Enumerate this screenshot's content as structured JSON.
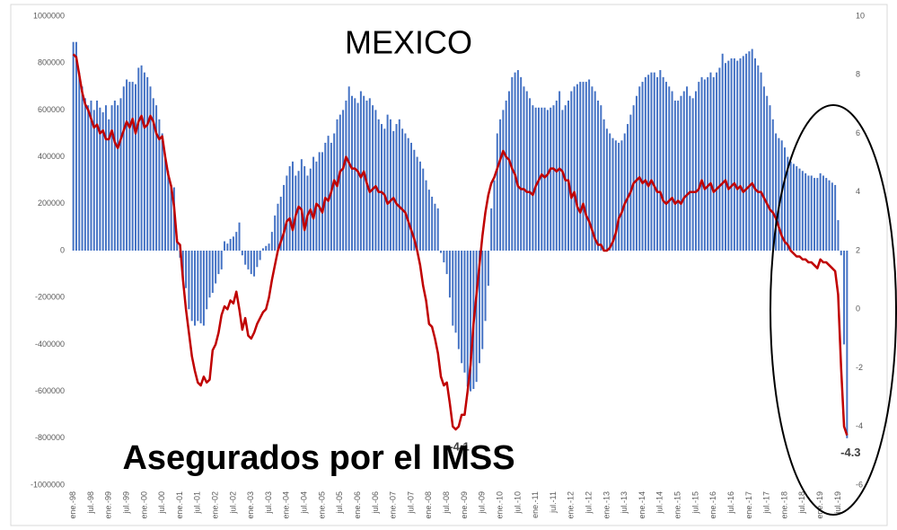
{
  "chart_data": {
    "type": "bar",
    "title": "MEXICO",
    "subtitle": "Asegurados por el IMSS",
    "categories": [
      "ene.-98",
      null,
      null,
      null,
      null,
      null,
      "jul.-98",
      null,
      null,
      null,
      null,
      null,
      "ene.-99",
      null,
      null,
      null,
      null,
      null,
      "jul.-99",
      null,
      null,
      null,
      null,
      null,
      "ene.-00",
      null,
      null,
      null,
      null,
      null,
      "jul.-00",
      null,
      null,
      null,
      null,
      null,
      "ene.-01",
      null,
      null,
      null,
      null,
      null,
      "jul.-01",
      null,
      null,
      null,
      null,
      null,
      "ene.-02",
      null,
      null,
      null,
      null,
      null,
      "jul.-02",
      null,
      null,
      null,
      null,
      null,
      "ene.-03",
      null,
      null,
      null,
      null,
      null,
      "jul.-03",
      null,
      null,
      null,
      null,
      null,
      "ene.-04",
      null,
      null,
      null,
      null,
      null,
      "jul.-04",
      null,
      null,
      null,
      null,
      null,
      "ene.-05",
      null,
      null,
      null,
      null,
      null,
      "jul.-05",
      null,
      null,
      null,
      null,
      null,
      "ene.-06",
      null,
      null,
      null,
      null,
      null,
      "jul.-06",
      null,
      null,
      null,
      null,
      null,
      "ene.-07",
      null,
      null,
      null,
      null,
      null,
      "jul.-07",
      null,
      null,
      null,
      null,
      null,
      "ene.-08",
      null,
      null,
      null,
      null,
      null,
      "jul.-08",
      null,
      null,
      null,
      null,
      null,
      "ene.-09",
      null,
      null,
      null,
      null,
      null,
      "jul.-09",
      null,
      null,
      null,
      null,
      null,
      "ene.-10",
      null,
      null,
      null,
      null,
      null,
      "jul.-10",
      null,
      null,
      null,
      null,
      null,
      "ene.-11",
      null,
      null,
      null,
      null,
      null,
      "jul.-11",
      null,
      null,
      null,
      null,
      null,
      "ene.-12",
      null,
      null,
      null,
      null,
      null,
      "jul.-12",
      null,
      null,
      null,
      null,
      null,
      "ene.-13",
      null,
      null,
      null,
      null,
      null,
      "jul.-13",
      null,
      null,
      null,
      null,
      null,
      "ene.-14",
      null,
      null,
      null,
      null,
      null,
      "jul.-14",
      null,
      null,
      null,
      null,
      null,
      "ene.-15",
      null,
      null,
      null,
      null,
      null,
      "jul.-15",
      null,
      null,
      null,
      null,
      null,
      "ene.-16",
      null,
      null,
      null,
      null,
      null,
      "jul.-16",
      null,
      null,
      null,
      null,
      null,
      "ene.-17",
      null,
      null,
      null,
      null,
      null,
      "jul.-17",
      null,
      null,
      null,
      null,
      null,
      "ene.-18",
      null,
      null,
      null,
      null,
      null,
      "jul.-18",
      null,
      null,
      null,
      null,
      null,
      "ene.-19",
      null,
      null,
      null,
      null,
      null,
      "jul.-19",
      null,
      null,
      null
    ],
    "series": [
      {
        "type": "bar",
        "color": "#4472c4",
        "values": [
          890000,
          890000,
          760000,
          700000,
          650000,
          620000,
          640000,
          600000,
          640000,
          610000,
          590000,
          620000,
          560000,
          620000,
          640000,
          620000,
          650000,
          700000,
          730000,
          720000,
          720000,
          710000,
          780000,
          790000,
          760000,
          740000,
          700000,
          650000,
          620000,
          560000,
          500000,
          400000,
          340000,
          280000,
          270000,
          50000,
          -30000,
          -120000,
          -160000,
          -250000,
          -300000,
          -320000,
          -300000,
          -310000,
          -320000,
          -250000,
          -200000,
          -180000,
          -140000,
          -100000,
          -80000,
          40000,
          30000,
          50000,
          60000,
          80000,
          120000,
          -20000,
          -60000,
          -80000,
          -100000,
          -110000,
          -70000,
          -40000,
          10000,
          20000,
          30000,
          80000,
          150000,
          200000,
          230000,
          280000,
          320000,
          360000,
          380000,
          320000,
          340000,
          390000,
          360000,
          320000,
          350000,
          400000,
          380000,
          420000,
          420000,
          460000,
          490000,
          460000,
          500000,
          560000,
          580000,
          600000,
          640000,
          700000,
          660000,
          650000,
          630000,
          680000,
          660000,
          640000,
          650000,
          620000,
          600000,
          560000,
          540000,
          520000,
          580000,
          560000,
          510000,
          540000,
          560000,
          520000,
          500000,
          480000,
          460000,
          430000,
          400000,
          380000,
          350000,
          300000,
          260000,
          230000,
          200000,
          180000,
          -10000,
          -50000,
          -100000,
          -200000,
          -320000,
          -350000,
          -420000,
          -480000,
          -520000,
          -580000,
          -600000,
          -590000,
          -560000,
          -480000,
          -420000,
          -300000,
          -150000,
          180000,
          300000,
          500000,
          560000,
          600000,
          640000,
          680000,
          740000,
          760000,
          770000,
          740000,
          700000,
          680000,
          650000,
          620000,
          610000,
          610000,
          610000,
          610000,
          600000,
          610000,
          620000,
          640000,
          680000,
          600000,
          620000,
          640000,
          680000,
          700000,
          710000,
          720000,
          720000,
          720000,
          730000,
          700000,
          680000,
          640000,
          620000,
          560000,
          520000,
          500000,
          480000,
          470000,
          460000,
          470000,
          500000,
          540000,
          580000,
          620000,
          660000,
          700000,
          720000,
          740000,
          750000,
          760000,
          760000,
          740000,
          770000,
          740000,
          720000,
          700000,
          680000,
          640000,
          640000,
          660000,
          680000,
          700000,
          660000,
          650000,
          680000,
          720000,
          740000,
          730000,
          740000,
          760000,
          740000,
          760000,
          780000,
          840000,
          800000,
          810000,
          820000,
          820000,
          810000,
          820000,
          830000,
          840000,
          850000,
          860000,
          820000,
          790000,
          760000,
          700000,
          660000,
          620000,
          560000,
          500000,
          480000,
          470000,
          440000,
          400000,
          380000,
          370000,
          360000,
          350000,
          340000,
          330000,
          320000,
          320000,
          310000,
          310000,
          330000,
          320000,
          310000,
          300000,
          290000,
          280000,
          130000,
          -20000,
          -400000,
          -800000
        ]
      },
      {
        "type": "line",
        "axis": "y2",
        "color": "#c00000",
        "values": [
          8.7,
          8.6,
          8.0,
          7.4,
          7.0,
          6.8,
          6.5,
          6.2,
          6.3,
          6.0,
          6.1,
          5.8,
          5.8,
          6.1,
          5.7,
          5.5,
          5.8,
          6.1,
          6.4,
          6.2,
          6.5,
          6.0,
          6.4,
          6.6,
          6.2,
          6.3,
          6.6,
          6.4,
          6.0,
          5.8,
          5.9,
          5.2,
          4.6,
          4.2,
          3.5,
          2.3,
          2.2,
          1.0,
          0.0,
          -0.8,
          -1.6,
          -2.1,
          -2.5,
          -2.6,
          -2.3,
          -2.5,
          -2.4,
          -1.4,
          -1.2,
          -0.8,
          -0.2,
          0.1,
          0.0,
          0.3,
          0.2,
          0.6,
          0.0,
          -0.7,
          -0.3,
          -0.9,
          -1.0,
          -0.8,
          -0.5,
          -0.3,
          -0.1,
          0.0,
          0.4,
          1.0,
          1.5,
          2.0,
          2.3,
          2.6,
          3.0,
          3.1,
          2.7,
          3.2,
          3.5,
          3.4,
          2.7,
          3.2,
          3.4,
          3.1,
          3.6,
          3.5,
          3.3,
          3.8,
          3.7,
          4.0,
          4.4,
          4.2,
          4.7,
          4.8,
          5.2,
          5.0,
          4.8,
          4.8,
          4.7,
          4.5,
          4.7,
          4.3,
          4.0,
          4.1,
          4.2,
          4.0,
          4.0,
          3.9,
          3.6,
          3.7,
          3.8,
          3.6,
          3.5,
          3.4,
          3.3,
          3.0,
          2.7,
          2.4,
          2.0,
          1.5,
          0.8,
          0.3,
          -0.5,
          -0.6,
          -1.0,
          -1.5,
          -2.3,
          -2.6,
          -2.5,
          -3.2,
          -4.0,
          -4.1,
          -4.0,
          -3.6,
          -3.6,
          -2.8,
          -1.9,
          -0.5,
          0.5,
          1.5,
          2.5,
          3.3,
          3.9,
          4.3,
          4.5,
          4.8,
          5.1,
          5.4,
          5.2,
          5.1,
          4.8,
          4.6,
          4.2,
          4.1,
          4.1,
          4.0,
          4.0,
          3.9,
          4.2,
          4.4,
          4.6,
          4.5,
          4.6,
          4.8,
          4.8,
          4.7,
          4.8,
          4.7,
          4.4,
          4.4,
          3.8,
          4.0,
          3.5,
          3.3,
          3.6,
          3.2,
          3.0,
          2.7,
          2.4,
          2.2,
          2.2,
          2.0,
          2.0,
          2.1,
          2.3,
          2.6,
          3.1,
          3.3,
          3.6,
          3.8,
          4.0,
          4.3,
          4.4,
          4.5,
          4.3,
          4.4,
          4.2,
          4.4,
          4.2,
          4.0,
          4.0,
          3.7,
          3.6,
          3.7,
          3.8,
          3.6,
          3.7,
          3.6,
          3.8,
          3.9,
          4.0,
          4.0,
          4.0,
          4.1,
          4.4,
          4.1,
          4.2,
          4.3,
          4.0,
          4.1,
          4.2,
          4.3,
          4.4,
          4.1,
          4.2,
          4.3,
          4.1,
          4.2,
          4.0,
          4.1,
          4.2,
          4.3,
          4.1,
          4.0,
          4.0,
          3.8,
          3.6,
          3.4,
          3.3,
          3.1,
          2.8,
          2.5,
          2.3,
          2.2,
          2.0,
          1.9,
          1.8,
          1.8,
          1.7,
          1.7,
          1.6,
          1.6,
          1.5,
          1.4,
          1.7,
          1.6,
          1.6,
          1.5,
          1.4,
          1.3,
          0.5,
          -2.0,
          -4.0,
          -4.3
        ],
        "value_labels": [
          null,
          null,
          null,
          null,
          null,
          null,
          null,
          null,
          null,
          null,
          null,
          null,
          null,
          null,
          null,
          null,
          null,
          null,
          null,
          null,
          null,
          null,
          null,
          null,
          null,
          null,
          null,
          null,
          null,
          null,
          null,
          null,
          null,
          null,
          null,
          null,
          null,
          null,
          null,
          null,
          null,
          null,
          null,
          null,
          null,
          null,
          null,
          null,
          null,
          null,
          null,
          null,
          null,
          null,
          null,
          null,
          null,
          null,
          null,
          null,
          null,
          null,
          null,
          null,
          null,
          null,
          null,
          null,
          null,
          null,
          null,
          null,
          null,
          null,
          null,
          null,
          null,
          null,
          null,
          null,
          null,
          null,
          null,
          null,
          null,
          null,
          null,
          null,
          null,
          null,
          null,
          null,
          null,
          null,
          null,
          null,
          null,
          null,
          null,
          null,
          null,
          null,
          null,
          null,
          null,
          null,
          null,
          null,
          null,
          null,
          null,
          null,
          null,
          null,
          null,
          null,
          null,
          null,
          null,
          null,
          null,
          null,
          null,
          null,
          null,
          null,
          null,
          null,
          null,
          "-4.1",
          null,
          null,
          null,
          null,
          null,
          null,
          null,
          null,
          null,
          null,
          null,
          null,
          null,
          null,
          null,
          null,
          null,
          null,
          null,
          null,
          null,
          null,
          null,
          null,
          null,
          null,
          null,
          null,
          null,
          null,
          null,
          null,
          null,
          null,
          null,
          null,
          null,
          null,
          null,
          null,
          null,
          null,
          null,
          null,
          null,
          null,
          null,
          null,
          null,
          null,
          null,
          null,
          null,
          null,
          null,
          null,
          null,
          null,
          null,
          null,
          null,
          null,
          null,
          null,
          null,
          null,
          null,
          null,
          null,
          null,
          null,
          null,
          null,
          null,
          null,
          null,
          null,
          null,
          null,
          null,
          null,
          null,
          null,
          null,
          null,
          null,
          null,
          null,
          null,
          null,
          null,
          null,
          null,
          null,
          null,
          null,
          null,
          null,
          null,
          null,
          null,
          null,
          null,
          null,
          null,
          null,
          null,
          null,
          null,
          null,
          null,
          null,
          null,
          null,
          null,
          null,
          null,
          null,
          null,
          null,
          null,
          null,
          null,
          null,
          null,
          null,
          null,
          null,
          null,
          null,
          null,
          "-4.3"
        ]
      }
    ],
    "ylim": [
      -1000000,
      1000000
    ],
    "yticks": [
      -1000000,
      -800000,
      -600000,
      -400000,
      -200000,
      0,
      200000,
      400000,
      600000,
      800000,
      1000000
    ],
    "y2lim": [
      -6,
      10
    ],
    "y2ticks": [
      -6,
      -4,
      -2,
      0,
      2,
      4,
      6,
      8,
      10
    ]
  }
}
